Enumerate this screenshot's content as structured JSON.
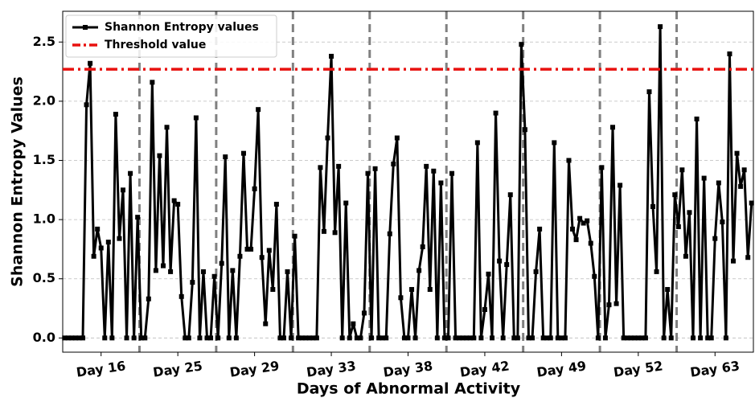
{
  "chart_data": {
    "type": "line",
    "xlabel": "Days of Abnormal Activity",
    "ylabel": "Shannon Entropy Values",
    "series": [
      {
        "name": "Shannon Entropy values",
        "color": "#000000",
        "values": [
          0,
          0,
          0,
          0,
          0,
          0,
          1.97,
          2.32,
          0.69,
          0.92,
          0.76,
          0,
          0.81,
          0,
          1.89,
          0.84,
          1.25,
          0,
          1.39,
          0,
          1.02,
          0,
          0,
          0.33,
          2.16,
          0.57,
          1.54,
          0.61,
          1.78,
          0.56,
          1.16,
          1.13,
          0.35,
          0,
          0,
          0.47,
          1.86,
          0,
          0.56,
          0,
          0,
          0.52,
          0,
          0.63,
          1.53,
          0,
          0.57,
          0,
          0.69,
          1.56,
          0.75,
          0.75,
          1.26,
          1.93,
          0.68,
          0.12,
          0.74,
          0.41,
          1.13,
          0,
          0,
          0.56,
          0,
          0.86,
          0,
          0,
          0,
          0,
          0,
          0,
          1.44,
          0.9,
          1.69,
          2.38,
          0.89,
          1.45,
          0,
          1.14,
          0,
          0.12,
          0,
          0,
          0.21,
          1.39,
          0,
          1.43,
          0,
          0,
          0,
          0.88,
          1.47,
          1.69,
          0.34,
          0,
          0,
          0.41,
          0,
          0.57,
          0.77,
          1.45,
          0.41,
          1.41,
          0,
          1.31,
          0,
          0,
          1.39,
          0,
          0,
          0,
          0,
          0,
          0,
          1.65,
          0,
          0.24,
          0.54,
          0,
          1.9,
          0.65,
          0,
          0.62,
          1.21,
          0,
          0,
          2.48,
          1.76,
          0,
          0,
          0.56,
          0.92,
          0,
          0,
          0,
          1.65,
          0,
          0,
          0,
          1.5,
          0.92,
          0.83,
          1.01,
          0.97,
          0.99,
          0.8,
          0.52,
          0,
          1.44,
          0,
          0.28,
          1.78,
          0.29,
          1.29,
          0,
          0,
          0,
          0,
          0,
          0,
          0,
          2.08,
          1.11,
          0.56,
          2.63,
          0,
          0.41,
          0,
          1.21,
          0.94,
          1.42,
          0.69,
          1.06,
          0,
          1.85,
          0,
          1.35,
          0,
          0,
          0.84,
          1.31,
          0.98,
          0,
          2.4,
          0.65,
          1.56,
          1.28,
          1.42,
          0.68,
          1.14
        ]
      }
    ],
    "threshold": {
      "name": "Threshold value",
      "value": 2.27,
      "color": "#e8110f"
    },
    "vlines": [
      20.5,
      41.5,
      62.5,
      83.5,
      104.5,
      125.5,
      146.5,
      167.5
    ],
    "xlim": [
      -0.5,
      188.5
    ],
    "xticks": [
      {
        "value": 10,
        "label": "Day 16"
      },
      {
        "value": 31,
        "label": "Day 25"
      },
      {
        "value": 52,
        "label": "Day 29"
      },
      {
        "value": 73,
        "label": "Day 33"
      },
      {
        "value": 94,
        "label": "Day 38"
      },
      {
        "value": 115,
        "label": "Day 42"
      },
      {
        "value": 136,
        "label": "Day 49"
      },
      {
        "value": 157,
        "label": "Day 52"
      },
      {
        "value": 178,
        "label": "Day 63"
      }
    ],
    "ylim": [
      -0.12,
      2.76
    ],
    "yticks": [
      {
        "value": 0,
        "label": "0.0"
      },
      0.5,
      {
        "value": 1,
        "label": "1.0"
      },
      1.5,
      {
        "value": 2,
        "label": "2.0"
      },
      2.5
    ],
    "grid": true,
    "legend": "upper-left"
  }
}
